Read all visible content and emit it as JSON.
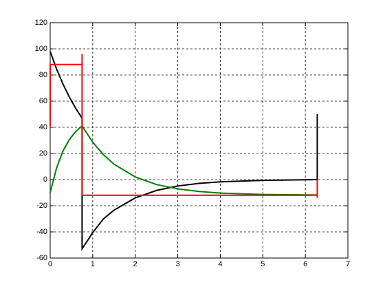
{
  "chart_data": {
    "type": "line",
    "xlim": [
      0,
      7
    ],
    "xticks": [
      0,
      1,
      2,
      3,
      4,
      5,
      6,
      7
    ],
    "ylim": [
      -60,
      120
    ],
    "yticks": [
      -60,
      -40,
      -20,
      0,
      20,
      40,
      60,
      80,
      100,
      120
    ],
    "grid": true,
    "series": [
      {
        "color": "#000000",
        "x": [
          0,
          0.15,
          0.3,
          0.45,
          0.6,
          0.75,
          0.75,
          1,
          1.25,
          1.5,
          2,
          2.5,
          3,
          3.5,
          4,
          5,
          6.28,
          6.28
        ],
        "values": [
          98,
          84.6,
          73.1,
          63.2,
          54.5,
          47,
          -53,
          -40.6,
          -30.1,
          -23.4,
          -14,
          -8.3,
          -4.9,
          -2.9,
          -1.7,
          -0.6,
          0,
          50
        ]
      },
      {
        "color": "#007f00",
        "x": [
          0,
          0.15,
          0.3,
          0.45,
          0.6,
          0.75,
          1,
          1.25,
          1.5,
          2,
          2.5,
          3,
          3.5,
          4,
          5,
          6.28
        ],
        "values": [
          -10,
          8.9,
          21.8,
          30.6,
          36.8,
          41,
          28.6,
          19.1,
          11.8,
          2,
          -3.8,
          -7.1,
          -9.1,
          -10.3,
          -11.4,
          -11.8
        ]
      },
      {
        "color": "#ff0000",
        "x": [
          0,
          0,
          0.75,
          0.75,
          0.75,
          6.28,
          6.28,
          6.28
        ],
        "values": [
          41,
          88,
          88,
          96,
          -12,
          -12,
          -14,
          0
        ]
      }
    ]
  }
}
